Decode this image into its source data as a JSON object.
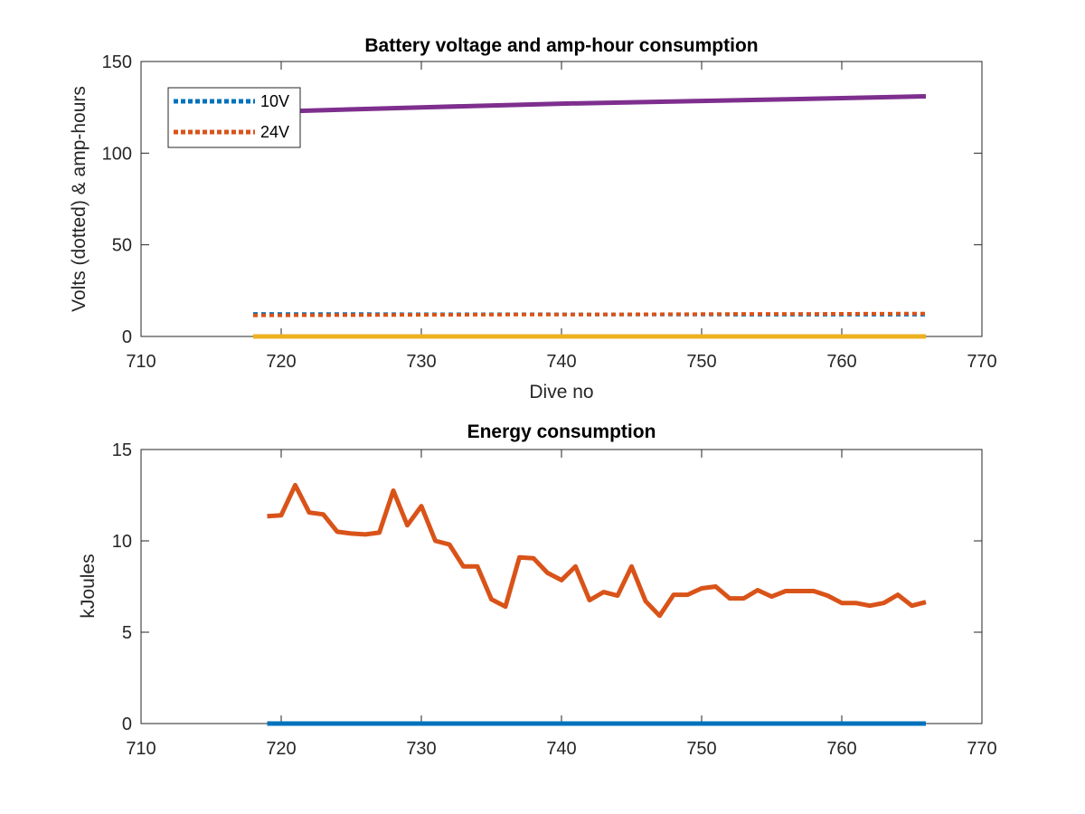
{
  "chart_data": [
    {
      "type": "line",
      "title": "Battery voltage and amp-hour consumption",
      "xlabel": "Dive no",
      "ylabel": "Volts (dotted) & amp-hours",
      "xlim": [
        710,
        770
      ],
      "ylim": [
        0,
        150
      ],
      "xticks": [
        "710",
        "720",
        "730",
        "740",
        "750",
        "760",
        "770"
      ],
      "yticks": [
        "0",
        "50",
        "100",
        "150"
      ],
      "grid": false,
      "legend_position": "top-left",
      "legend": [
        "10V",
        "24V"
      ],
      "series": [
        {
          "name": "10V",
          "color": "#0072BD",
          "style": "dotted",
          "x": [
            718,
            722,
            726,
            730,
            734,
            738,
            742,
            746,
            750,
            754,
            758,
            762,
            766
          ],
          "y": [
            12.3,
            12.2,
            12.2,
            12.1,
            12.1,
            12.1,
            12.0,
            12.0,
            12.0,
            11.9,
            11.9,
            11.9,
            11.9
          ]
        },
        {
          "name": "24V",
          "color": "#D95319",
          "style": "dotted",
          "x": [
            718,
            722,
            726,
            730,
            734,
            738,
            742,
            746,
            750,
            754,
            758,
            762,
            766
          ],
          "y": [
            11.5,
            11.6,
            11.7,
            11.8,
            11.9,
            12.0,
            12.0,
            12.1,
            12.2,
            12.3,
            12.3,
            12.4,
            12.5
          ]
        },
        {
          "color": "#EDB120",
          "style": "solid",
          "x": [
            718,
            766
          ],
          "y": [
            0,
            0
          ]
        },
        {
          "color": "#7E2F8E",
          "style": "solid",
          "x": [
            721,
            730,
            740,
            750,
            760,
            766
          ],
          "y": [
            123,
            125,
            127,
            128.5,
            130,
            131
          ]
        }
      ]
    },
    {
      "type": "line",
      "title": "Energy consumption",
      "xlabel": "",
      "ylabel": "kJoules",
      "xlim": [
        710,
        770
      ],
      "ylim": [
        0,
        15
      ],
      "xticks": [
        "710",
        "720",
        "730",
        "740",
        "750",
        "760",
        "770"
      ],
      "yticks": [
        "0",
        "5",
        "10",
        "15"
      ],
      "grid": false,
      "series": [
        {
          "color": "#0072BD",
          "style": "solid",
          "x": [
            719,
            766
          ],
          "y": [
            0,
            0
          ]
        },
        {
          "color": "#D95319",
          "style": "solid",
          "x": [
            719,
            720,
            721,
            722,
            723,
            724,
            725,
            726,
            727,
            728,
            729,
            730,
            731,
            732,
            733,
            734,
            735,
            736,
            737,
            738,
            739,
            740,
            741,
            742,
            743,
            744,
            745,
            746,
            747,
            748,
            749,
            750,
            751,
            752,
            753,
            754,
            755,
            756,
            757,
            758,
            759,
            760,
            761,
            762,
            763,
            764,
            765,
            766
          ],
          "y": [
            11.35,
            11.4,
            13.05,
            11.55,
            11.45,
            10.5,
            10.4,
            10.35,
            10.45,
            12.75,
            10.85,
            11.9,
            10.0,
            9.8,
            8.6,
            8.6,
            6.8,
            6.4,
            9.1,
            9.05,
            8.25,
            7.85,
            8.6,
            6.75,
            7.2,
            7.0,
            8.6,
            6.7,
            5.9,
            7.05,
            7.05,
            7.4,
            7.5,
            6.85,
            6.85,
            7.3,
            6.95,
            7.25,
            7.25,
            7.25,
            7.0,
            6.6,
            6.6,
            6.45,
            6.6,
            7.05,
            6.45,
            6.65
          ]
        }
      ]
    }
  ]
}
